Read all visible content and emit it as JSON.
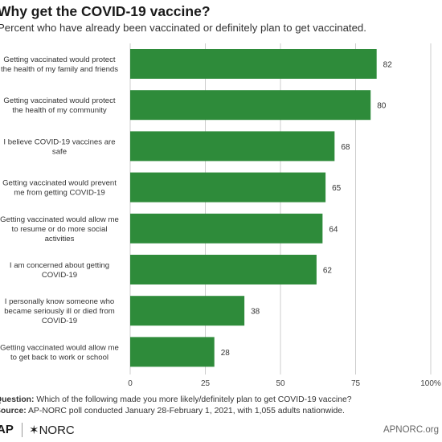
{
  "header": {
    "title": "Why get the COVID-19 vaccine?",
    "subtitle": "Percent who have already been vaccinated or definitely plan to get vaccinated."
  },
  "chart_data": {
    "type": "bar",
    "orientation": "horizontal",
    "categories": [
      [
        "Getting vaccinated would protect",
        "the health of my family and friends"
      ],
      [
        "Getting vaccinated would protect",
        "the health of my community"
      ],
      [
        "I believe COVID-19 vaccines are",
        "safe"
      ],
      [
        "Getting vaccinated would prevent",
        "me from getting COVID-19"
      ],
      [
        "Getting vaccinated would allow me",
        "to resume or do more social",
        "activities"
      ],
      [
        "I am concerned about getting",
        "COVID-19"
      ],
      [
        "I personally know someone who",
        "became seriously ill or died from",
        "COVID-19"
      ],
      [
        "Getting vaccinated would allow me",
        "to get back to work or school"
      ]
    ],
    "values": [
      82,
      80,
      68,
      65,
      64,
      62,
      38,
      28
    ],
    "xlim": [
      0,
      100
    ],
    "ticks": [
      "0",
      "25",
      "50",
      "75",
      "100%"
    ],
    "grid": true,
    "bar_color": "#2e8b3a",
    "grid_color": "#cccccc"
  },
  "footer": {
    "question_label": "Question:",
    "question_text": " Which of the following made you more likely/definitely plan to get COVID-19 vaccine?",
    "source_label": "Source:",
    "source_text": " AP-NORC poll conducted January 28-February 1, 2021, with 1,055 adults nationwide."
  },
  "branding": {
    "ap_logo": "AP",
    "norc_logo": "✶NORC",
    "site": "APNORC.org"
  }
}
